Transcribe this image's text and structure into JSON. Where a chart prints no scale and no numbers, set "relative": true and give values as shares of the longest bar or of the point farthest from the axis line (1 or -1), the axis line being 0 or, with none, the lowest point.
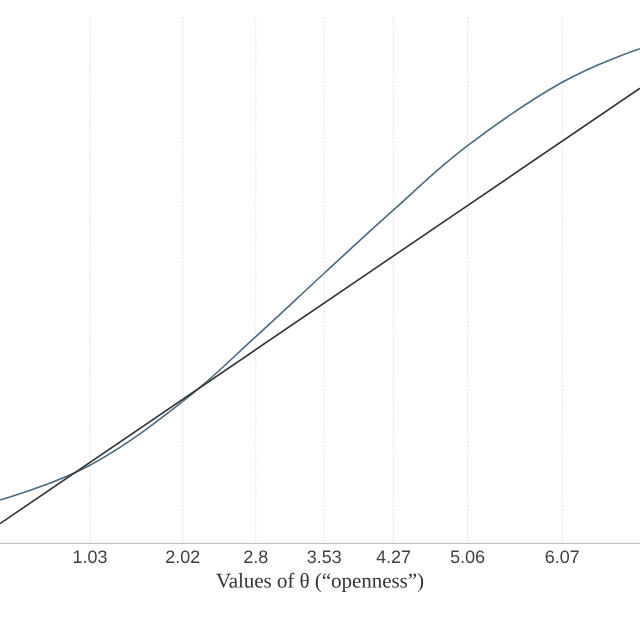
{
  "chart_data": {
    "type": "line",
    "xlabel": "Values of θ (“openness”)",
    "relative": true,
    "series": [
      {
        "x": [
          0.07,
          1.03,
          2.02,
          2.8,
          3.53,
          4.27,
          5.06,
          6.07,
          6.9
        ],
        "values": [
          0.0877,
          0.158,
          0.287,
          0.418,
          0.546,
          0.674,
          0.804,
          0.932,
          1
        ],
        "color": "#4a6a80"
      },
      {
        "x": [
          0.07,
          6.9
        ],
        "values": [
          0.04,
          0.92
        ],
        "color": "#333333"
      }
    ],
    "xlim": [
      0.07,
      6.9
    ],
    "xticks": [
      1.03,
      2.02,
      2.8,
      3.53,
      4.27,
      5.06,
      6.07
    ],
    "grid": "x",
    "tick_labels": "x",
    "marker": "none",
    "line_style": "solid"
  }
}
